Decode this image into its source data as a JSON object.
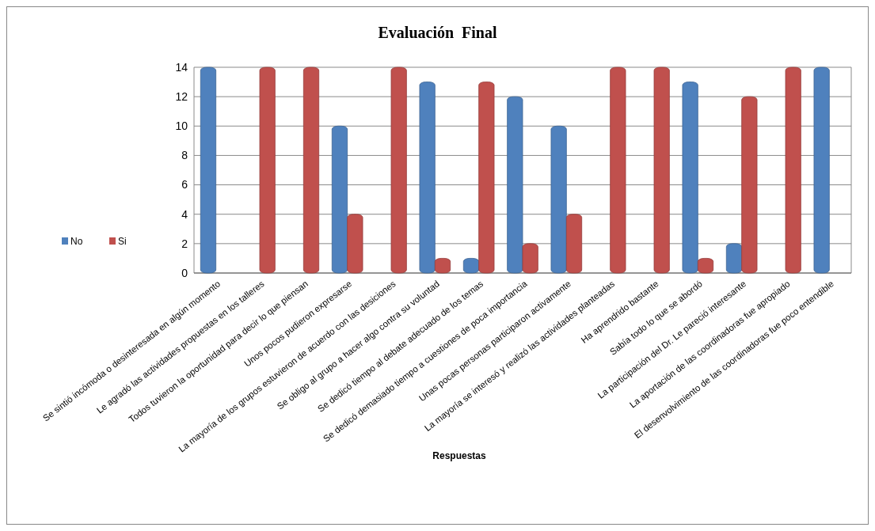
{
  "chart_data": {
    "type": "bar",
    "title": "Evaluación  Final",
    "xlabel": "Respuestas",
    "categories": [
      "Se sintió incómoda o desinteresada en algún momento",
      "Le agradó las actividades propuestas en los talleres",
      "Todos tuvieron la oportunidad para decir lo que piensan",
      "Unos pocos pudieron expresarse",
      "La mayoría de los grupos estuvieron de acuerdo con las desiciones",
      "Se obligo al grupo a hacer algo contra su voluntad",
      "Se dedicó tiempo al debate adecuado de los temas",
      "Se dedicó demasiado tiempo a cuestiones de poca importancia",
      "Unas pocas personas participaron activamente",
      "La mayoría se interesó y realizó las actividades planteadas",
      "Ha aprendrido bastante",
      "Sabía todo lo que se abordó",
      "La participación del Dr. Le pareció interesante",
      "La aportación de las coordinadoras fue apropiado",
      "El desenvolvimiento de las coordinadoras fue poco entendible"
    ],
    "series": [
      {
        "name": "No",
        "color": "#4f81bd",
        "values": [
          14,
          0,
          0,
          10,
          0,
          13,
          1,
          12,
          10,
          0,
          0,
          13,
          2,
          0,
          14
        ]
      },
      {
        "name": "Si",
        "color": "#c0504d",
        "values": [
          0,
          14,
          14,
          4,
          14,
          1,
          13,
          2,
          4,
          14,
          14,
          1,
          12,
          14,
          0
        ]
      }
    ],
    "ylim": [
      0,
      14
    ],
    "yticks": [
      0,
      2,
      4,
      6,
      8,
      10,
      12,
      14
    ],
    "grid": "y",
    "legend": "left"
  }
}
